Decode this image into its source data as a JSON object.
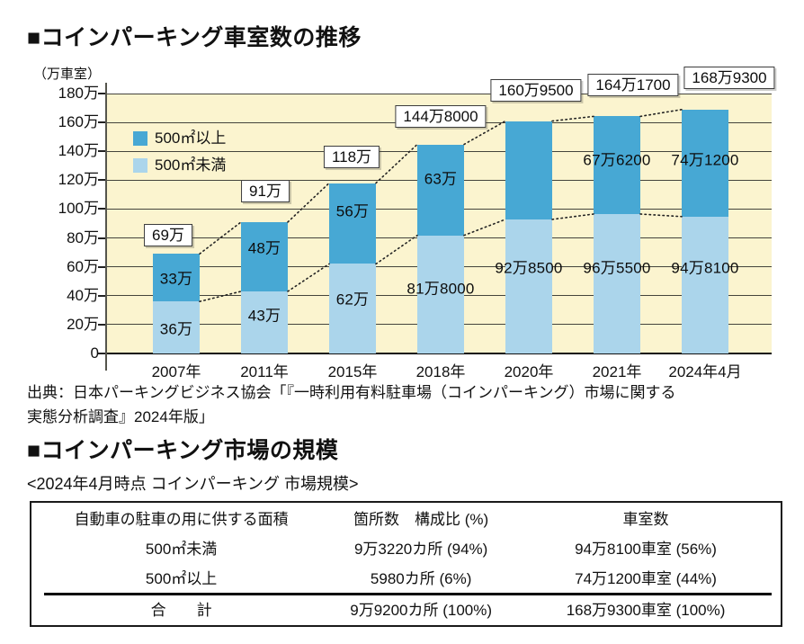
{
  "section1": {
    "title": "■コインパーキング車室数の推移",
    "unit_label": "（万車室）",
    "source_line1": "出典：日本パーキングビジネス協会「『一時利用有料駐車場（コインパーキング）市場に関する",
    "source_line2": "実態分析調査』2024年版」"
  },
  "chart_data": {
    "type": "bar",
    "stacked": true,
    "title": "コインパーキング車室数の推移",
    "unit": "万車室",
    "ylim": [
      0,
      180
    ],
    "ytick_labels": [
      "0",
      "20万",
      "40万",
      "60万",
      "80万",
      "100万",
      "120万",
      "140万",
      "160万",
      "180万"
    ],
    "grid": true,
    "categories": [
      "2007年",
      "2011年",
      "2015年",
      "2018年",
      "2020年",
      "2021年",
      "2024年4月"
    ],
    "series": [
      {
        "name": "500㎡未満",
        "color_key": "light",
        "values": [
          36,
          43,
          62,
          81.8,
          92.85,
          96.55,
          94.81
        ],
        "labels": [
          "36万",
          "43万",
          "62万",
          "81万8000",
          "92万8500",
          "96万5500",
          "94万8100"
        ]
      },
      {
        "name": "500㎡以上",
        "color_key": "dark",
        "values": [
          33,
          48,
          56,
          63,
          68.1,
          67.62,
          74.12
        ],
        "labels": [
          "33万",
          "48万",
          "56万",
          "63万",
          "",
          "67万6200",
          "74万1200"
        ]
      }
    ],
    "totals": [
      69,
      91,
      118,
      144.8,
      160.95,
      164.17,
      168.93
    ],
    "total_labels": [
      "69万",
      "91万",
      "118万",
      "144万8000",
      "160万9500",
      "164万1700",
      "168万9300"
    ],
    "legend": [
      {
        "label": "500㎡以上",
        "color_key": "dark"
      },
      {
        "label": "500㎡未満",
        "color_key": "light"
      }
    ],
    "legend_position": "upper-left",
    "trend_lines": "dotted lines connect segment tops of consecutive bars (totals and 500㎡未満 boundary)"
  },
  "section2": {
    "title": "■コインパーキング市場の規模",
    "subtitle": "<2024年4月時点 コインパーキング 市場規模>",
    "table": {
      "headers": [
        "自動車の駐車の用に供する面積",
        "箇所数　構成比 (%)",
        "車室数"
      ],
      "rows": [
        [
          "500㎡未満",
          "9万3220カ所 (94%)",
          "94万8100車室 (56%)"
        ],
        [
          "500㎡以上",
          "5980カ所 (6%)",
          "74万1200車室 (44%)"
        ],
        [
          "合　　計",
          "9万9200カ所 (100%)",
          "168万9300車室 (100%)"
        ]
      ]
    }
  },
  "colors": {
    "dark": "#47a8d4",
    "light": "#abd5eb",
    "plot_bg": "#fbf4cf",
    "grid": "#44443c",
    "text": "#111111",
    "axis": "#55554c"
  }
}
